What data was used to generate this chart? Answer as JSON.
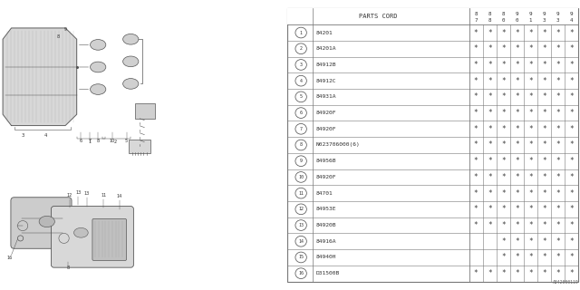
{
  "diagram_code": "A842000119",
  "col_headers_line1": [
    "8",
    "8",
    "8",
    "9",
    "9",
    "9",
    "9",
    "9"
  ],
  "col_headers_line2": [
    "7",
    "8",
    "0",
    "0",
    "1",
    "3",
    "3",
    "4"
  ],
  "rows": [
    {
      "num": "1",
      "part": "84201",
      "stars": [
        1,
        1,
        1,
        1,
        1,
        1,
        1,
        1
      ]
    },
    {
      "num": "2",
      "part": "84201A",
      "stars": [
        1,
        1,
        1,
        1,
        1,
        1,
        1,
        1
      ]
    },
    {
      "num": "3",
      "part": "84912B",
      "stars": [
        1,
        1,
        1,
        1,
        1,
        1,
        1,
        1
      ]
    },
    {
      "num": "4",
      "part": "84912C",
      "stars": [
        1,
        1,
        1,
        1,
        1,
        1,
        1,
        1
      ]
    },
    {
      "num": "5",
      "part": "84931A",
      "stars": [
        1,
        1,
        1,
        1,
        1,
        1,
        1,
        1
      ]
    },
    {
      "num": "6",
      "part": "84920F",
      "stars": [
        1,
        1,
        1,
        1,
        1,
        1,
        1,
        1
      ]
    },
    {
      "num": "7",
      "part": "84920F",
      "stars": [
        1,
        1,
        1,
        1,
        1,
        1,
        1,
        1
      ]
    },
    {
      "num": "8",
      "part": "N023706000(6)",
      "stars": [
        1,
        1,
        1,
        1,
        1,
        1,
        1,
        1
      ]
    },
    {
      "num": "9",
      "part": "84956B",
      "stars": [
        1,
        1,
        1,
        1,
        1,
        1,
        1,
        1
      ]
    },
    {
      "num": "10",
      "part": "84920F",
      "stars": [
        1,
        1,
        1,
        1,
        1,
        1,
        1,
        1
      ]
    },
    {
      "num": "11",
      "part": "84701",
      "stars": [
        1,
        1,
        1,
        1,
        1,
        1,
        1,
        1
      ]
    },
    {
      "num": "12",
      "part": "84953E",
      "stars": [
        1,
        1,
        1,
        1,
        1,
        1,
        1,
        1
      ]
    },
    {
      "num": "13",
      "part": "84920B",
      "stars": [
        1,
        1,
        1,
        1,
        1,
        1,
        1,
        1
      ]
    },
    {
      "num": "14",
      "part": "84916A",
      "stars": [
        0,
        0,
        1,
        1,
        1,
        1,
        1,
        1
      ]
    },
    {
      "num": "15",
      "part": "84940H",
      "stars": [
        0,
        0,
        1,
        1,
        1,
        1,
        1,
        1
      ]
    },
    {
      "num": "16",
      "part": "D31500B",
      "stars": [
        1,
        1,
        1,
        1,
        1,
        1,
        1,
        1
      ]
    }
  ]
}
